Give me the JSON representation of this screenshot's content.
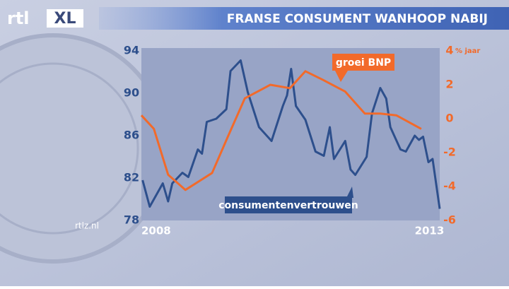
{
  "logo": {
    "rtl": "rtl",
    "xl": "XL"
  },
  "website": "rtlz.nl",
  "chart_data": {
    "type": "line",
    "title": "FRANSE CONSUMENT WANHOOP NABIJ",
    "xlim": [
      2008,
      2013.02
    ],
    "xticks": [
      2008,
      2013
    ],
    "ylim": [
      78,
      94
    ],
    "yticks": [
      78,
      82,
      86,
      90,
      94
    ],
    "y2lim": [
      -6,
      4
    ],
    "y2ticks": [
      -6,
      -4,
      -2,
      0,
      2,
      4
    ],
    "y2_unit": "% jaar",
    "series": [
      {
        "name": "consumentenvertrouwen",
        "color": "#2d4f8c",
        "axis": "y",
        "x": [
          2008.02,
          2008.14,
          2008.36,
          2008.45,
          2008.52,
          2008.69,
          2008.79,
          2008.95,
          2009.02,
          2009.1,
          2009.26,
          2009.43,
          2009.5,
          2009.67,
          2009.79,
          2009.98,
          2010.19,
          2010.38,
          2010.45,
          2010.52,
          2010.6,
          2010.76,
          2010.93,
          2011.07,
          2011.17,
          2011.24,
          2011.43,
          2011.52,
          2011.6,
          2011.79,
          2011.88,
          2012.02,
          2012.12,
          2012.19,
          2012.36,
          2012.45,
          2012.6,
          2012.67,
          2012.74,
          2012.83,
          2012.9,
          2013.02
        ],
        "values": [
          81.8,
          79.3,
          81.5,
          79.8,
          81.5,
          82.5,
          82.1,
          84.7,
          84.3,
          87.3,
          87.6,
          88.5,
          92.1,
          93.1,
          90.1,
          86.8,
          85.5,
          88.8,
          89.8,
          92.3,
          88.8,
          87.5,
          84.5,
          84.1,
          86.8,
          83.8,
          85.5,
          82.8,
          82.3,
          84.0,
          88.1,
          90.5,
          89.5,
          86.8,
          84.7,
          84.5,
          86.0,
          85.6,
          85.9,
          83.5,
          83.8,
          79.1
        ]
      },
      {
        "name": "groei BNP",
        "color": "#f26a2a",
        "axis": "y2",
        "x": [
          2008.0,
          2008.21,
          2008.45,
          2008.74,
          2009.19,
          2009.45,
          2009.74,
          2010.17,
          2010.5,
          2010.76,
          2011.05,
          2011.43,
          2011.76,
          2012.02,
          2012.29,
          2012.71
        ],
        "values": [
          0.2,
          -0.6,
          -3.3,
          -4.2,
          -3.2,
          -1.1,
          1.2,
          2.0,
          1.8,
          2.8,
          2.3,
          1.6,
          0.3,
          0.3,
          0.2,
          -0.6
        ]
      }
    ]
  }
}
